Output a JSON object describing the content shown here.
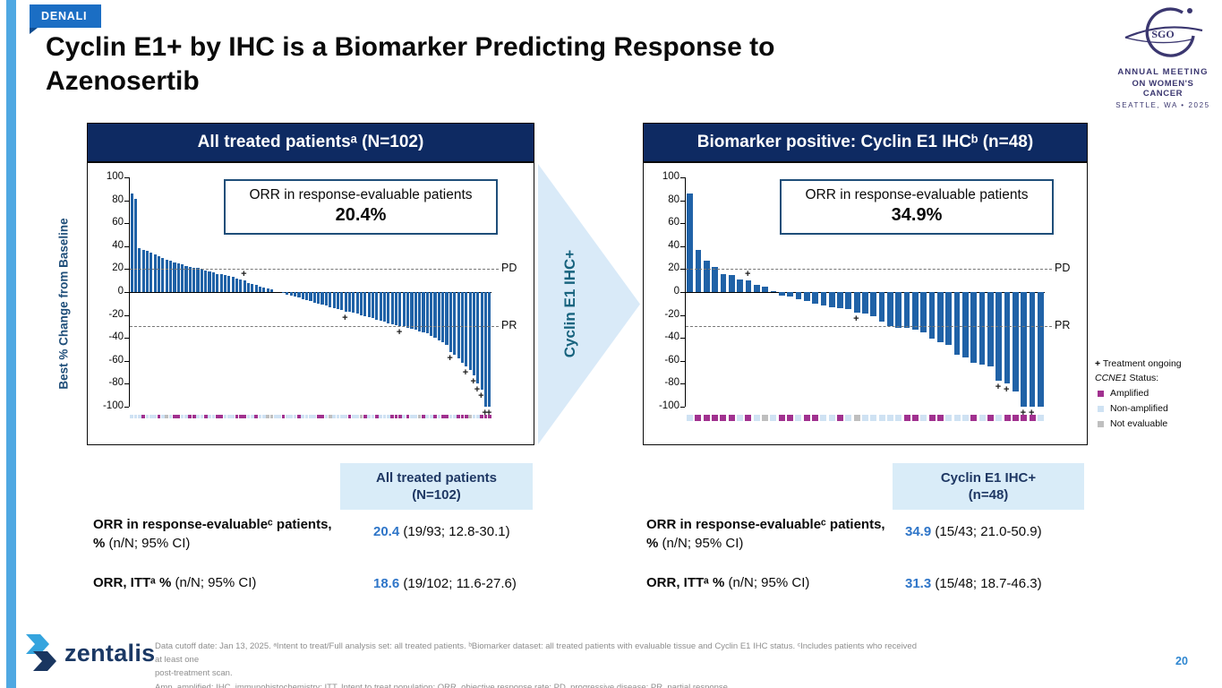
{
  "badge": {
    "label": "DENALI"
  },
  "title": "Cyclin E1+ by IHC is a Biomarker Predicting Response to Azenosertib",
  "logo": {
    "acronym": "SGO",
    "line1": "ANNUAL MEETING",
    "line2": "ON WOMEN'S CANCER",
    "line3": "SEATTLE, WA • 2025"
  },
  "arrow": {
    "label": "Cyclin E1 IHC+"
  },
  "legend": {
    "ongoing_symbol": "+",
    "ongoing_label": "Treatment ongoing",
    "status_gene": "CCNE1",
    "status_rest": " Status:",
    "items": [
      {
        "key": "a",
        "label": "Amplified",
        "color": "#A1318F"
      },
      {
        "key": "n",
        "label": "Non-amplified",
        "color": "#CFE2F3"
      },
      {
        "key": "e",
        "label": "Not evaluable",
        "color": "#BFBFBF"
      }
    ]
  },
  "chart_data": [
    {
      "type": "bar",
      "title": "All treated patientsᵃ (N=102)",
      "orr_label": "ORR in response-evaluable patients",
      "orr_value": "20.4%",
      "ylabel": "Best % Change from Baseline",
      "ylim": [
        -100,
        100
      ],
      "yticks": [
        100,
        80,
        60,
        40,
        20,
        0,
        -20,
        -40,
        -60,
        -80,
        -100
      ],
      "thresholds": [
        {
          "label": "PD",
          "value": 20
        },
        {
          "label": "PR",
          "value": -30
        }
      ],
      "bar_color": "#2062A7",
      "values": [
        86,
        81,
        38,
        37,
        36,
        34,
        33,
        31,
        30,
        28,
        27,
        26,
        25,
        24,
        23,
        22,
        21,
        21,
        20,
        19,
        18,
        17,
        16,
        16,
        15,
        14,
        13,
        12,
        11,
        10,
        8,
        7,
        6,
        5,
        4,
        3,
        2,
        0,
        0,
        -1,
        -2,
        -3,
        -4,
        -5,
        -6,
        -7,
        -8,
        -9,
        -10,
        -11,
        -12,
        -13,
        -14,
        -15,
        -16,
        -17,
        -17,
        -18,
        -19,
        -20,
        -21,
        -22,
        -23,
        -24,
        -25,
        -26,
        -27,
        -28,
        -29,
        -30,
        -30,
        -31,
        -32,
        -33,
        -34,
        -35,
        -36,
        -38,
        -40,
        -42,
        -44,
        -46,
        -52,
        -55,
        -58,
        -62,
        -65,
        -68,
        -73,
        -80,
        -85,
        -100,
        -100
      ],
      "status": "nnnannnanenaannaannannaannnaaannanneennannnannnnaanennnnanneannannnaaananneannanaannaaaennaaa",
      "markers": [
        29,
        55,
        69,
        82,
        86,
        88,
        89,
        90,
        91,
        92
      ]
    },
    {
      "type": "bar",
      "title": "Biomarker positive: Cyclin E1 IHCᵇ (n=48)",
      "orr_label": "ORR in response-evaluable patients",
      "orr_value": "34.9%",
      "ylabel": "",
      "ylim": [
        -100,
        100
      ],
      "yticks": [
        100,
        80,
        60,
        40,
        20,
        0,
        -20,
        -40,
        -60,
        -80,
        -100
      ],
      "thresholds": [
        {
          "label": "PD",
          "value": 20
        },
        {
          "label": "PR",
          "value": -30
        }
      ],
      "bar_color": "#2062A7",
      "values": [
        86,
        37,
        27,
        22,
        16,
        15,
        11,
        10,
        6,
        5,
        1,
        -3,
        -4,
        -6,
        -8,
        -10,
        -12,
        -13,
        -14,
        -15,
        -18,
        -19,
        -21,
        -26,
        -30,
        -31,
        -31,
        -33,
        -35,
        -41,
        -44,
        -46,
        -55,
        -57,
        -62,
        -63,
        -65,
        -77,
        -80,
        -87,
        -100,
        -100,
        -100
      ],
      "status": "naaaaananenaanaannanennnnnaanaannnananaaaan",
      "markers": [
        7,
        20,
        37,
        38,
        40,
        41
      ]
    }
  ],
  "tables": [
    {
      "header_line1": "All treated patients",
      "header_line2": "(N=102)",
      "rows": [
        {
          "label_bold": "ORR in response-evaluableᶜ patients, %",
          "label_rest": " (n/N; 95% CI)",
          "value_num": "20.4",
          "value_rest": " (19/93; 12.8-30.1)"
        },
        {
          "label_bold": "ORR, ITTᵃ %",
          "label_rest": " (n/N; 95% CI)",
          "value_num": "18.6",
          "value_rest": " (19/102; 11.6-27.6)"
        }
      ]
    },
    {
      "header_line1": "Cyclin E1 IHC+",
      "header_line2": "(n=48)",
      "rows": [
        {
          "label_bold": "ORR in response-evaluableᶜ patients, %",
          "label_rest": " (n/N; 95% CI)",
          "value_num": "34.9",
          "value_rest": " (15/43; 21.0-50.9)"
        },
        {
          "label_bold": "ORR, ITTᵃ %",
          "label_rest": " (n/N; 95% CI)",
          "value_num": "31.3",
          "value_rest": " (15/48; 18.7-46.3)"
        }
      ]
    }
  ],
  "footer": {
    "brand": "zentalis",
    "notes": [
      "Data cutoff date: Jan 13, 2025. ᵃIntent to treat/Full analysis set: all treated patients. ᵇBiomarker dataset: all treated patients with evaluable tissue and Cyclin E1 IHC status. ᶜIncludes patients who received at least one",
      "post-treatment scan.",
      "Amp, amplified; IHC, immunohistochemistry; ITT, Intent to treat population; ORR, objective response rate; PD, progressive disease; PR, partial response."
    ],
    "page": "20"
  }
}
